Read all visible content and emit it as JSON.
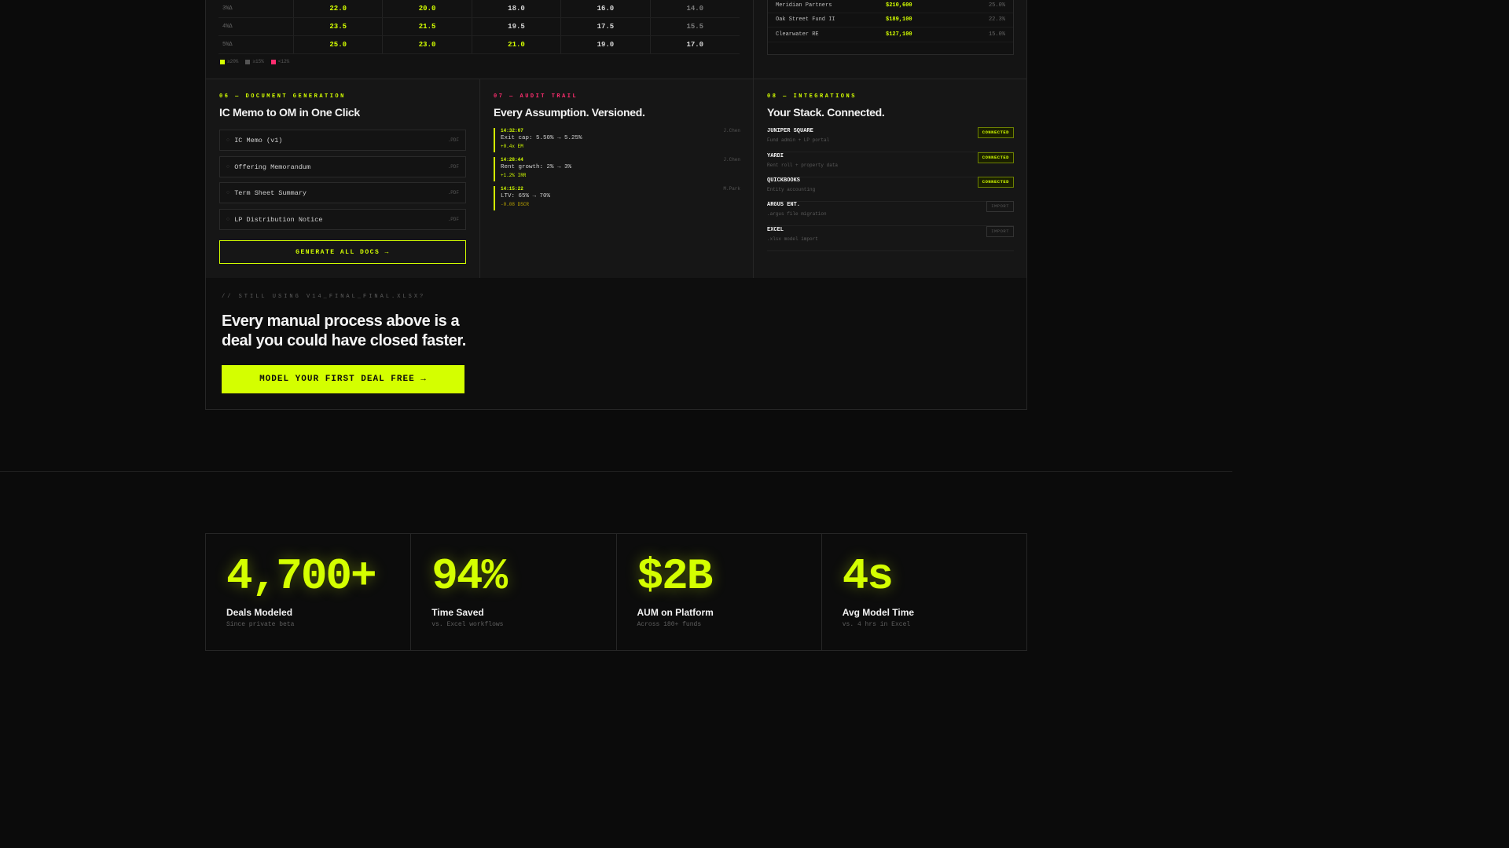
{
  "colors": {
    "accent": "#d4ff00",
    "pink": "#ff2d6f",
    "muted": "#666666",
    "gray_legend": "#555555"
  },
  "sensitivity": {
    "rows": [
      {
        "label": "3%Δ",
        "values": [
          "22.0",
          "20.0",
          "18.0",
          "16.0",
          "14.0"
        ],
        "tiers": [
          "hi",
          "hi",
          "mid",
          "mid",
          "lo"
        ]
      },
      {
        "label": "4%Δ",
        "values": [
          "23.5",
          "21.5",
          "19.5",
          "17.5",
          "15.5"
        ],
        "tiers": [
          "hi",
          "hi",
          "mid",
          "mid",
          "lo"
        ]
      },
      {
        "label": "5%Δ",
        "values": [
          "25.0",
          "23.0",
          "21.0",
          "19.0",
          "17.0"
        ],
        "tiers": [
          "hi",
          "hi",
          "hi",
          "mid",
          "mid"
        ]
      }
    ],
    "legend": [
      {
        "label": "≥20%",
        "color": "#d4ff00"
      },
      {
        "label": "≥15%",
        "color": "#555555"
      },
      {
        "label": "<12%",
        "color": "#ff2d6f"
      }
    ]
  },
  "lp_table": [
    {
      "name": "Meridian Partners",
      "amount": "$210,600",
      "pct": "25.0%"
    },
    {
      "name": "Oak Street Fund II",
      "amount": "$189,100",
      "pct": "22.3%"
    },
    {
      "name": "Clearwater RE",
      "amount": "$127,100",
      "pct": "15.0%"
    }
  ],
  "doc_generation": {
    "eyebrow": "06 — DOCUMENT GENERATION",
    "title": "IC Memo to OM in One Click",
    "docs": [
      {
        "name": "IC Memo (v1)",
        "ext": ".PDF"
      },
      {
        "name": "Offering Memorandum",
        "ext": ".PDF"
      },
      {
        "name": "Term Sheet Summary",
        "ext": ".PDF"
      },
      {
        "name": "LP Distribution Notice",
        "ext": ".PDF"
      }
    ],
    "button": "GENERATE ALL DOCS →",
    "bullet": "○"
  },
  "audit_trail": {
    "eyebrow": "07 — AUDIT TRAIL",
    "title": "Every Assumption. Versioned.",
    "entries": [
      {
        "time": "14:32:07",
        "change": "Exit cap: 5.50% → 5.25%",
        "impact": "+0.4x EM",
        "user": "J.Chen",
        "impact_color": "#d4ff00"
      },
      {
        "time": "14:28:44",
        "change": "Rent growth: 2% → 3%",
        "impact": "+1.2% IRR",
        "user": "J.Chen",
        "impact_color": "#d4ff00"
      },
      {
        "time": "14:15:22",
        "change": "LTV: 65% → 70%",
        "impact": "-0.08 DSCR",
        "user": "M.Park",
        "impact_color": "#b8a200"
      }
    ]
  },
  "integrations": {
    "eyebrow": "08 — INTEGRATIONS",
    "title": "Your Stack. Connected.",
    "items": [
      {
        "name": "JUNIPER SQUARE",
        "desc": "Fund admin + LP portal",
        "status": "CONNECTED",
        "kind": "connected"
      },
      {
        "name": "YARDI",
        "desc": "Rent roll + property data",
        "status": "CONNECTED",
        "kind": "connected"
      },
      {
        "name": "QUICKBOOKS",
        "desc": "Entity accounting",
        "status": "CONNECTED",
        "kind": "connected"
      },
      {
        "name": "ARGUS ENT.",
        "desc": ".argus file migration",
        "status": "IMPORT",
        "kind": "import"
      },
      {
        "name": "EXCEL",
        "desc": ".xlsx model import",
        "status": "IMPORT",
        "kind": "import"
      }
    ]
  },
  "cta": {
    "eyebrow": "// STILL USING V14_FINAL_FINAL.XLSX?",
    "headline": "Every manual process above is a deal you could have closed faster.",
    "button": "MODEL YOUR FIRST DEAL FREE →"
  },
  "stats": [
    {
      "value": "4,700+",
      "label": "Deals Modeled",
      "sub": "Since private beta"
    },
    {
      "value": "94%",
      "label": "Time Saved",
      "sub": "vs. Excel workflows"
    },
    {
      "value": "$2B",
      "label": "AUM on Platform",
      "sub": "Across 180+ funds"
    },
    {
      "value": "4s",
      "label": "Avg Model Time",
      "sub": "vs. 4 hrs in Excel"
    }
  ]
}
